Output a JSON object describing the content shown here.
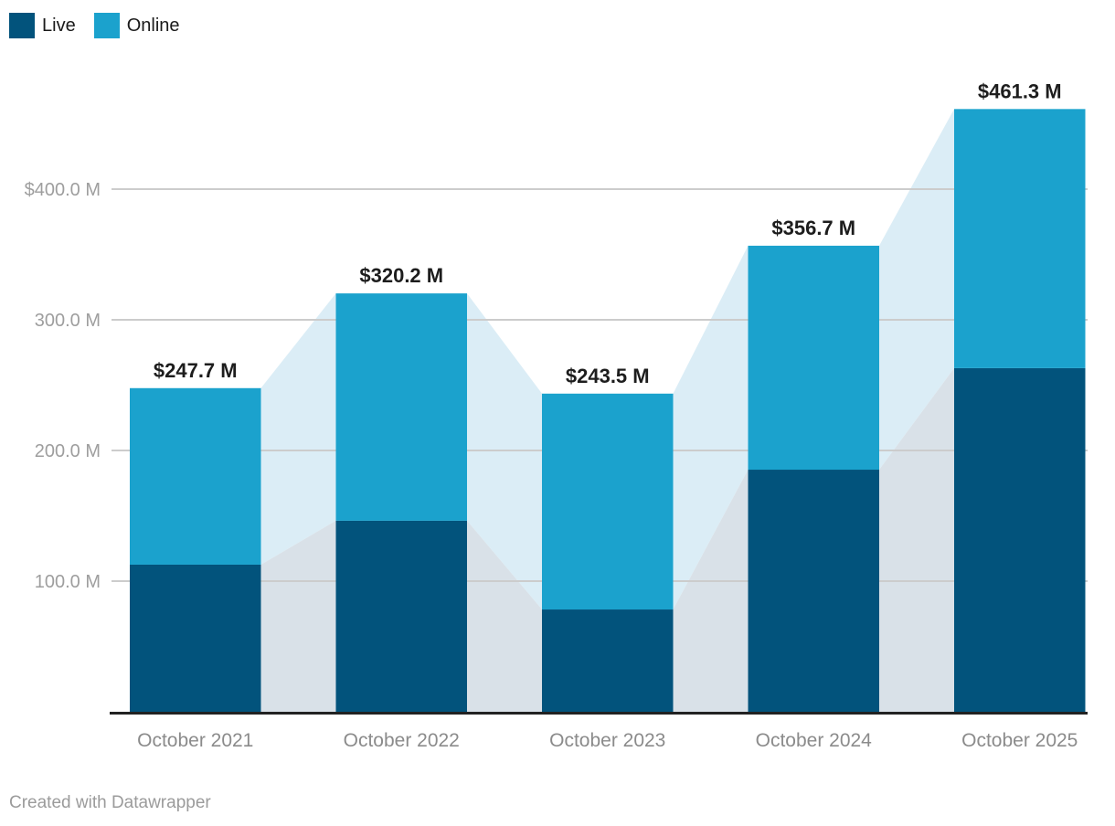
{
  "legend": {
    "items": [
      {
        "label": "Live",
        "color": "#02537c"
      },
      {
        "label": "Online",
        "color": "#1ba2cd"
      }
    ]
  },
  "footer": {
    "text": "Created with Datawrapper"
  },
  "colors": {
    "live": "#02537c",
    "online": "#1ba2cd",
    "live_connector": "#d9e1e8",
    "online_connector": "#dbedf6",
    "gridline": "#cccccc",
    "axis_line": "#222222",
    "y_label": "#9e9e9e",
    "x_label": "#8b8b8b",
    "value_label": "#1d1d1d",
    "legend_text": "#1a1a1a",
    "footer_text": "#9b9b9b",
    "background": "#ffffff"
  },
  "chart_data": {
    "type": "bar",
    "stacked": true,
    "title": "",
    "xlabel": "",
    "ylabel": "",
    "units": "$ millions",
    "categories": [
      "October 2021",
      "October 2022",
      "October 2023",
      "October 2024",
      "October 2025"
    ],
    "series": [
      {
        "name": "Live",
        "values": [
          112.6,
          146.2,
          78.3,
          185.3,
          263.0
        ]
      },
      {
        "name": "Online",
        "values": [
          135.1,
          174.0,
          165.2,
          171.4,
          198.3
        ]
      }
    ],
    "totals": [
      247.7,
      320.2,
      243.5,
      356.7,
      461.3
    ],
    "total_labels": [
      "$247.7 M",
      "$320.2 M",
      "$243.5 M",
      "$356.7 M",
      "$461.3 M"
    ],
    "y_ticks": [
      {
        "value": 100,
        "label": "100.0 M"
      },
      {
        "value": 200,
        "label": "200.0 M"
      },
      {
        "value": 300,
        "label": "300.0 M"
      },
      {
        "value": 400,
        "label": "$400.0 M"
      }
    ],
    "ylim": [
      0,
      470
    ],
    "grid": "horizontal",
    "legend_position": "top-left",
    "connectors": "area bands link stacked segments between adjacent bars"
  }
}
